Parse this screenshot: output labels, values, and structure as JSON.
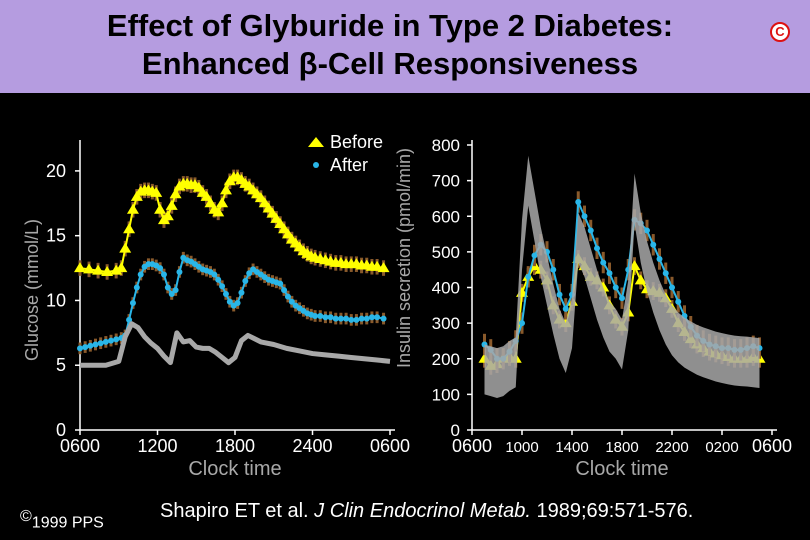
{
  "header": {
    "title_line1": "Effect of Glyburide in Type 2 Diabetes:",
    "title_line2": "Enhanced β-Cell Responsiveness",
    "logo_letter": "C",
    "bg_color": "#b59ce0"
  },
  "footer": {
    "copyright_symbol": "©",
    "copyright_text": "1999 PPS",
    "citation_pre": "Shapiro ET et al. ",
    "citation_journal": "J Clin Endocrinol Metab.",
    "citation_post": " 1989;69:571-576."
  },
  "colors": {
    "before": "#ffff00",
    "after": "#29b6e8",
    "normal": "#a8a8a8",
    "error_bar": "#8a5a2b",
    "axis": "#ffffff"
  },
  "chart_data": [
    {
      "type": "line",
      "title": "",
      "ylabel": "Glucose (mmol/L)",
      "xlabel": "Clock time",
      "x_unit": "hours from 0600",
      "xlim": [
        0,
        24
      ],
      "ylim": [
        0,
        22
      ],
      "yticks": [
        0,
        5,
        10,
        15,
        20
      ],
      "xticks": [
        {
          "x": 0,
          "label": "0600"
        },
        {
          "x": 6,
          "label": "1200"
        },
        {
          "x": 12,
          "label": "1800"
        },
        {
          "x": 18,
          "label": "2400"
        },
        {
          "x": 24,
          "label": "0600"
        }
      ],
      "legend_position": "top-right",
      "series": [
        {
          "name": "Before",
          "marker": "triangle",
          "color": "#ffff00",
          "x": [
            0,
            0.7,
            1.4,
            2.1,
            2.8,
            3.2,
            3.5,
            3.8,
            4.1,
            4.4,
            4.7,
            5.0,
            5.3,
            5.6,
            5.9,
            6.2,
            6.5,
            6.8,
            7.1,
            7.4,
            7.7,
            8.0,
            8.3,
            8.6,
            8.9,
            9.2,
            9.5,
            9.8,
            10.1,
            10.4,
            10.7,
            11.0,
            11.3,
            11.6,
            11.9,
            12.2,
            12.5,
            12.8,
            13.1,
            13.4,
            13.7,
            14.0,
            14.3,
            14.6,
            14.9,
            15.2,
            15.5,
            15.8,
            16.1,
            16.4,
            16.7,
            17.0,
            17.3,
            17.6,
            17.9,
            18.2,
            18.6,
            19.0,
            19.4,
            19.8,
            20.2,
            20.6,
            21.0,
            21.4,
            21.8,
            22.2,
            22.6,
            23.0,
            23.5
          ],
          "y": [
            12.5,
            12.4,
            12.3,
            12.2,
            12.3,
            12.5,
            14.0,
            15.5,
            17.0,
            18.0,
            18.4,
            18.5,
            18.5,
            18.4,
            18.3,
            17.0,
            16.2,
            16.5,
            17.3,
            18.2,
            18.8,
            19.0,
            19.0,
            18.9,
            18.9,
            18.7,
            18.3,
            18.0,
            17.5,
            17.0,
            16.8,
            17.5,
            18.5,
            19.2,
            19.5,
            19.5,
            19.3,
            19.0,
            18.8,
            18.5,
            18.2,
            17.9,
            17.5,
            17.1,
            16.7,
            16.3,
            15.9,
            15.5,
            15.1,
            14.7,
            14.4,
            14.1,
            13.8,
            13.6,
            13.4,
            13.3,
            13.2,
            13.1,
            13.0,
            12.9,
            12.9,
            12.8,
            12.8,
            12.8,
            12.7,
            12.7,
            12.6,
            12.6,
            12.5
          ],
          "error": 0.6
        },
        {
          "name": "After",
          "marker": "dot",
          "color": "#29b6e8",
          "x": [
            0,
            0.4,
            0.8,
            1.2,
            1.6,
            2.0,
            2.4,
            2.8,
            3.2,
            3.5,
            3.8,
            4.1,
            4.4,
            4.7,
            5.0,
            5.3,
            5.6,
            5.9,
            6.2,
            6.5,
            6.8,
            7.1,
            7.4,
            7.7,
            8.0,
            8.3,
            8.6,
            8.9,
            9.2,
            9.5,
            9.8,
            10.1,
            10.4,
            10.7,
            11.0,
            11.3,
            11.6,
            11.9,
            12.2,
            12.5,
            12.8,
            13.1,
            13.4,
            13.7,
            14.0,
            14.3,
            14.6,
            14.9,
            15.2,
            15.5,
            15.8,
            16.1,
            16.4,
            16.7,
            17.0,
            17.3,
            17.6,
            17.9,
            18.2,
            18.6,
            19.0,
            19.4,
            19.8,
            20.2,
            20.6,
            21.0,
            21.4,
            21.8,
            22.2,
            22.6,
            23.0,
            23.5
          ],
          "y": [
            6.3,
            6.4,
            6.5,
            6.6,
            6.7,
            6.8,
            6.9,
            7.0,
            7.1,
            7.3,
            8.5,
            9.8,
            11.0,
            12.0,
            12.6,
            12.8,
            12.8,
            12.7,
            12.5,
            12.0,
            11.0,
            10.5,
            10.8,
            12.2,
            13.3,
            13.1,
            13.0,
            12.8,
            12.6,
            12.4,
            12.3,
            12.2,
            12.0,
            11.6,
            11.1,
            10.5,
            9.9,
            9.6,
            9.8,
            10.6,
            11.5,
            12.1,
            12.4,
            12.2,
            12.0,
            11.8,
            11.6,
            11.5,
            11.4,
            11.3,
            10.8,
            10.3,
            9.9,
            9.6,
            9.4,
            9.2,
            9.0,
            8.9,
            8.8,
            8.8,
            8.7,
            8.7,
            8.6,
            8.6,
            8.6,
            8.5,
            8.5,
            8.6,
            8.6,
            8.7,
            8.7,
            8.6
          ],
          "error": 0.45
        },
        {
          "name": "",
          "marker": "none",
          "color": "#a8a8a8",
          "x": [
            0,
            1,
            2,
            3,
            3.5,
            4.0,
            4.5,
            5.0,
            5.5,
            6.0,
            6.5,
            7.0,
            7.5,
            8.0,
            8.5,
            9.0,
            9.5,
            10.0,
            10.5,
            11.0,
            11.5,
            12.0,
            12.5,
            13.0,
            14,
            15,
            16,
            17,
            18,
            19,
            20,
            21,
            22,
            23,
            24
          ],
          "y": [
            5.0,
            5.0,
            5.0,
            5.3,
            7.2,
            8.2,
            7.9,
            7.2,
            6.7,
            6.3,
            5.7,
            5.2,
            7.5,
            6.8,
            6.9,
            6.4,
            6.3,
            6.3,
            6.0,
            5.6,
            5.2,
            5.6,
            6.9,
            7.3,
            6.8,
            6.6,
            6.3,
            6.1,
            5.9,
            5.8,
            5.7,
            5.6,
            5.5,
            5.4,
            5.3
          ]
        }
      ]
    },
    {
      "type": "line",
      "title": "",
      "ylabel": "Insulin secretion (pmol/min)",
      "xlabel": "Clock time",
      "x_unit": "hours from 0600",
      "xlim": [
        0,
        24
      ],
      "ylim": [
        0,
        800
      ],
      "yticks": [
        0,
        100,
        200,
        300,
        400,
        500,
        600,
        700,
        800
      ],
      "xticks": [
        {
          "x": 0,
          "label": "0600"
        },
        {
          "x": 4,
          "label": "1000"
        },
        {
          "x": 8,
          "label": "1400"
        },
        {
          "x": 12,
          "label": "1800"
        },
        {
          "x": 16,
          "label": "2200"
        },
        {
          "x": 20,
          "label": "0200"
        },
        {
          "x": 24,
          "label": "0600"
        }
      ],
      "series": [
        {
          "name": "Before",
          "marker": "triangle",
          "color": "#ffff00",
          "x": [
            1,
            1.5,
            2,
            2.5,
            3,
            3.5,
            4,
            4.5,
            5,
            5.5,
            6,
            6.5,
            7,
            7.5,
            8,
            8.5,
            9,
            9.5,
            10,
            10.5,
            11,
            11.5,
            12,
            12.5,
            13,
            13.5,
            14,
            14.5,
            15,
            15.5,
            16,
            16.5,
            17,
            17.5,
            18,
            18.5,
            19,
            19.5,
            20,
            20.5,
            21,
            21.5,
            22,
            22.5,
            23
          ],
          "y": [
            200,
            180,
            185,
            200,
            205,
            200,
            385,
            430,
            460,
            450,
            420,
            350,
            310,
            300,
            360,
            480,
            460,
            430,
            420,
            400,
            350,
            310,
            290,
            330,
            460,
            420,
            395,
            390,
            385,
            370,
            340,
            300,
            275,
            255,
            240,
            230,
            220,
            215,
            210,
            205,
            200,
            200,
            200,
            205,
            200
          ],
          "error": 25
        },
        {
          "name": "After",
          "marker": "dot",
          "color": "#29b6e8",
          "x": [
            1,
            1.5,
            2,
            2.5,
            3,
            3.5,
            4,
            4.5,
            5,
            5.5,
            6,
            6.5,
            7,
            7.5,
            8,
            8.5,
            9,
            9.5,
            10,
            10.5,
            11,
            11.5,
            12,
            12.5,
            13,
            13.5,
            14,
            14.5,
            15,
            15.5,
            16,
            16.5,
            17,
            17.5,
            18,
            18.5,
            19,
            19.5,
            20,
            20.5,
            21,
            21.5,
            22,
            22.5,
            23
          ],
          "y": [
            240,
            225,
            200,
            200,
            220,
            250,
            300,
            430,
            490,
            520,
            500,
            450,
            380,
            340,
            380,
            640,
            600,
            560,
            510,
            470,
            440,
            400,
            370,
            450,
            590,
            580,
            560,
            520,
            480,
            440,
            400,
            360,
            320,
            290,
            265,
            250,
            240,
            235,
            230,
            230,
            225,
            225,
            230,
            235,
            230
          ],
          "error": 30
        },
        {
          "name": "",
          "marker": "none",
          "color": "#a8a8a8",
          "x": [
            1,
            1.5,
            2,
            2.5,
            3,
            3.5,
            4,
            4.5,
            5,
            5.5,
            6,
            6.5,
            7,
            7.5,
            8,
            8.5,
            9,
            9.5,
            10,
            10.5,
            11,
            11.5,
            12,
            12.5,
            13,
            13.5,
            14,
            14.5,
            15,
            15.5,
            16,
            16.5,
            17,
            17.5,
            18,
            18.5,
            19,
            19.5,
            20,
            20.5,
            21,
            21.5,
            22,
            22.5,
            23
          ],
          "y": [
            170,
            165,
            160,
            165,
            180,
            190,
            520,
            700,
            600,
            500,
            420,
            340,
            270,
            230,
            300,
            540,
            500,
            440,
            380,
            330,
            290,
            270,
            240,
            350,
            650,
            540,
            460,
            400,
            350,
            310,
            280,
            260,
            245,
            235,
            225,
            218,
            212,
            206,
            202,
            198,
            195,
            193,
            192,
            190,
            188
          ],
          "band": 70
        }
      ]
    }
  ]
}
